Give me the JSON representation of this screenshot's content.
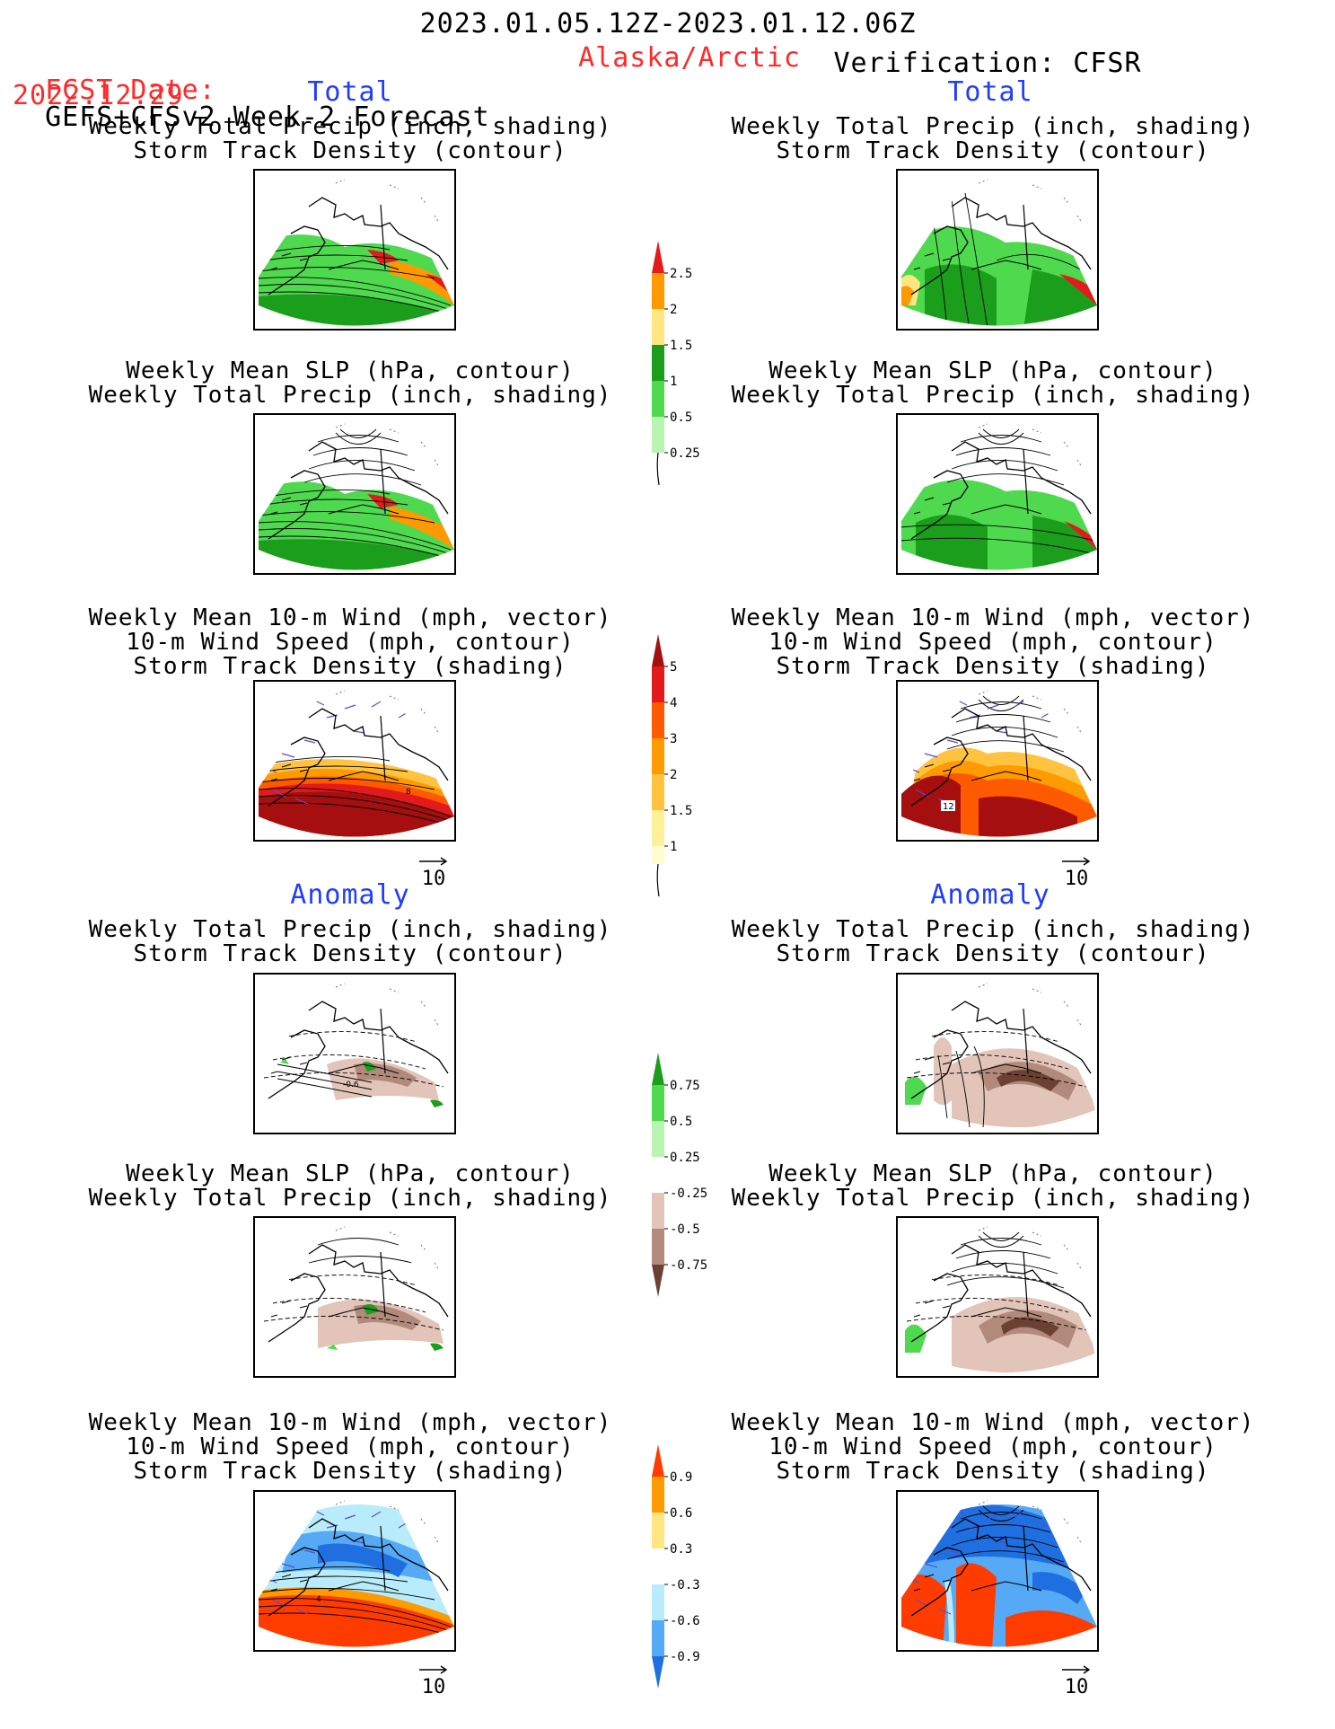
{
  "header": {
    "date_range": "2023.01.05.12Z-2023.01.12.06Z",
    "fcst_label": "FCST Date:",
    "forecast_name": "GEFS+CFSv2 Week-2 Forecast",
    "fcst_date": "2022.12.29",
    "region": "Alaska/Arctic",
    "verification": "Verification: CFSR"
  },
  "sections": {
    "total": "Total",
    "anomaly": "Anomaly"
  },
  "panel_titles": {
    "precip_storm": [
      "Weekly Total Precip (inch, shading)",
      "Storm Track Density (contour)"
    ],
    "slp_precip": [
      "Weekly Mean SLP (hPa, contour)",
      "Weekly Total Precip (inch, shading)"
    ],
    "wind_storm": [
      "Weekly Mean 10-m Wind (mph, vector)",
      "10-m Wind Speed (mph, contour)",
      "Storm Track Density (shading)"
    ]
  },
  "reference_vector": "10",
  "map_labels": {
    "obs_total_wind_contour": "12",
    "fcst_total_wind_contour": "8",
    "fcst_anom_precip_contour": "-0.6",
    "fcst_anom_wind_contour": "4"
  },
  "colorbars": {
    "total_precip": {
      "labels": [
        "2.5",
        "2",
        "1.5",
        "1",
        "0.5",
        "0.25"
      ],
      "colors": [
        "#e41a1c",
        "#ff9900",
        "#ffe680",
        "#1b9e1b",
        "#4fd94f",
        "#b8f5b0"
      ]
    },
    "storm_density": {
      "labels": [
        "5",
        "4",
        "3",
        "2",
        "1.5",
        "1"
      ],
      "colors": [
        "#a50f0f",
        "#e31a1c",
        "#ff5a00",
        "#ff9a00",
        "#ffc340",
        "#fff09a",
        "#fffccf"
      ]
    },
    "precip_anomaly": {
      "labels": [
        "0.75",
        "0.5",
        "0.25",
        "-0.25",
        "-0.5",
        "-0.75"
      ],
      "colors": [
        "#1b9e1b",
        "#4fd94f",
        "#b8f5b0",
        "#ffffff",
        "#e2c4b8",
        "#b28a7c",
        "#6b4133"
      ]
    },
    "density_anomaly": {
      "labels": [
        "0.9",
        "0.6",
        "0.3",
        "-0.3",
        "-0.6",
        "-0.9"
      ],
      "colors": [
        "#ff3c00",
        "#ff9a00",
        "#ffe680",
        "#ffffff",
        "#b9ecfa",
        "#56aaf5",
        "#1f6fe0"
      ]
    }
  }
}
